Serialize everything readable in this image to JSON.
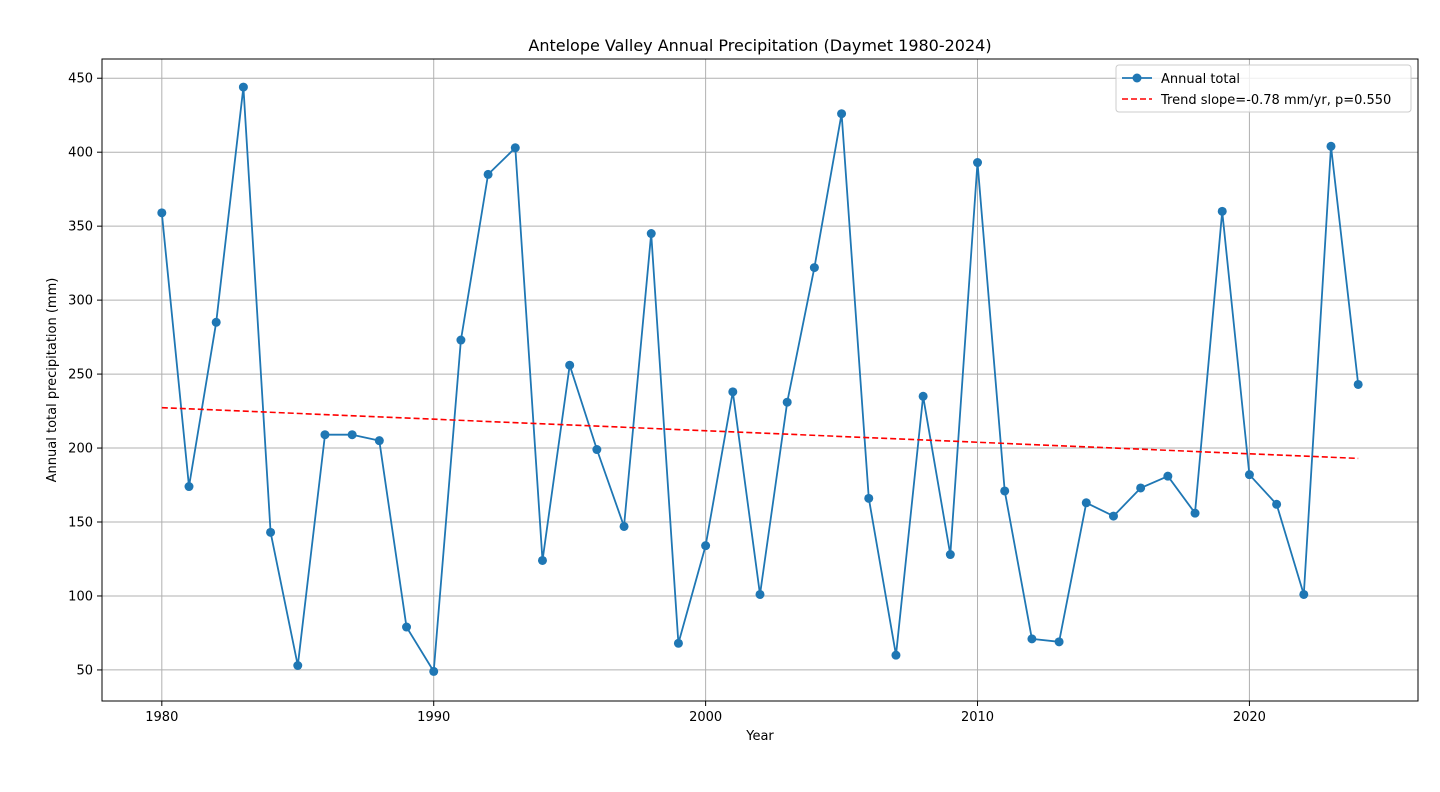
{
  "chart_data": {
    "type": "line",
    "title": "Antelope Valley Annual Precipitation (Daymet 1980-2024)",
    "xlabel": "Year",
    "ylabel": "Annual total precipitation (mm)",
    "xlim": [
      1977.8,
      2026.2
    ],
    "ylim": [
      29,
      463
    ],
    "xticks": [
      1980,
      1990,
      2000,
      2010,
      2020
    ],
    "yticks": [
      50,
      100,
      150,
      200,
      250,
      300,
      350,
      400,
      450
    ],
    "grid": true,
    "legend_position": "top-right",
    "x": [
      1980,
      1981,
      1982,
      1983,
      1984,
      1985,
      1986,
      1987,
      1988,
      1989,
      1990,
      1991,
      1992,
      1993,
      1994,
      1995,
      1996,
      1997,
      1998,
      1999,
      2000,
      2001,
      2002,
      2003,
      2004,
      2005,
      2006,
      2007,
      2008,
      2009,
      2010,
      2011,
      2012,
      2013,
      2014,
      2015,
      2016,
      2017,
      2018,
      2019,
      2020,
      2021,
      2022,
      2023,
      2024
    ],
    "series": [
      {
        "name": "Annual total",
        "color": "#1f77b4",
        "style": "solid-marker",
        "values": [
          359,
          174,
          285,
          444,
          143,
          53,
          209,
          209,
          205,
          79,
          49,
          273,
          385,
          403,
          124,
          256,
          199,
          147,
          345,
          68,
          134,
          238,
          101,
          231,
          322,
          426,
          166,
          60,
          235,
          128,
          393,
          171,
          71,
          69,
          163,
          154,
          173,
          181,
          156,
          360,
          182,
          162,
          101,
          404,
          243
        ]
      },
      {
        "name": "Trend slope=-0.78 mm/yr, p=0.550",
        "color": "#ff0000",
        "style": "dashed",
        "x": [
          1980,
          2024
        ],
        "values": [
          227.3,
          193.0
        ]
      }
    ]
  }
}
